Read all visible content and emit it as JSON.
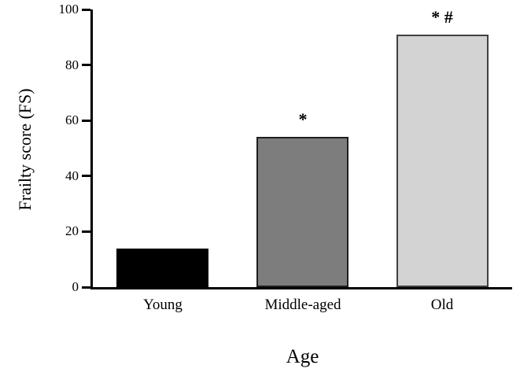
{
  "figure": {
    "background_color": "#ffffff",
    "axis_color": "#000000",
    "text_color": "#000000"
  },
  "chart_data": {
    "type": "bar",
    "title": "",
    "xlabel": "Age",
    "ylabel": "Frailty score (FS)",
    "categories": [
      "Young",
      "Middle-aged",
      "Old"
    ],
    "values": [
      14,
      54,
      91
    ],
    "bar_fill_colors": [
      "#000000",
      "#7d7d7d",
      "#d3d3d3"
    ],
    "bar_border_colors": [
      "#000000",
      "#1f1f1f",
      "#404040"
    ],
    "annotations": [
      "",
      "*",
      "* #"
    ],
    "ylim": [
      0,
      100
    ],
    "yticks": [
      0,
      20,
      40,
      60,
      80,
      100
    ],
    "grid": false,
    "legend": "none",
    "tick_direction": "out"
  }
}
